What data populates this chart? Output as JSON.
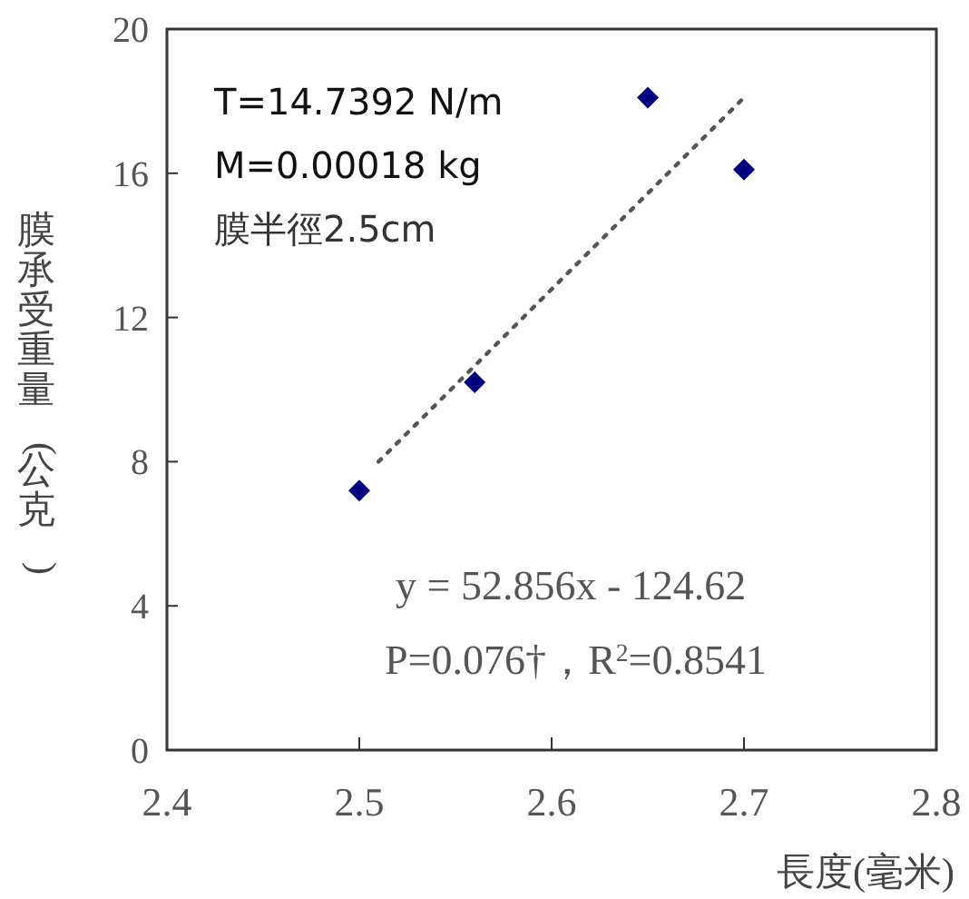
{
  "chart_data": {
    "type": "scatter",
    "xlabel": "長度(毫米)",
    "ylabel": "膜承受重量(公克)",
    "xlim": [
      2.4,
      2.8
    ],
    "xticks": [
      2.4,
      2.5,
      2.6,
      2.7,
      2.8
    ],
    "ylim": [
      0,
      20
    ],
    "yticks": [
      0,
      4,
      8,
      12,
      16,
      20
    ],
    "grid": false,
    "series": [
      {
        "color": "#00007f",
        "marker": "diamond",
        "x": [
          2.5,
          2.56,
          2.65,
          2.7
        ],
        "values": [
          7.2,
          10.2,
          18.1,
          16.1
        ]
      },
      {
        "type": "line",
        "color": "#555555",
        "line_style": "dotted",
        "marker": "none",
        "x": [
          2.51,
          2.7
        ],
        "values": [
          8.0,
          18.1
        ]
      }
    ],
    "annotations": [
      "T=14.7392 N/m",
      "M=0.00018 kg",
      "膜半徑2.5cm",
      "y = 52.856x - 124.62",
      "P=0.076†，R$^{2}$=0.8541"
    ]
  }
}
